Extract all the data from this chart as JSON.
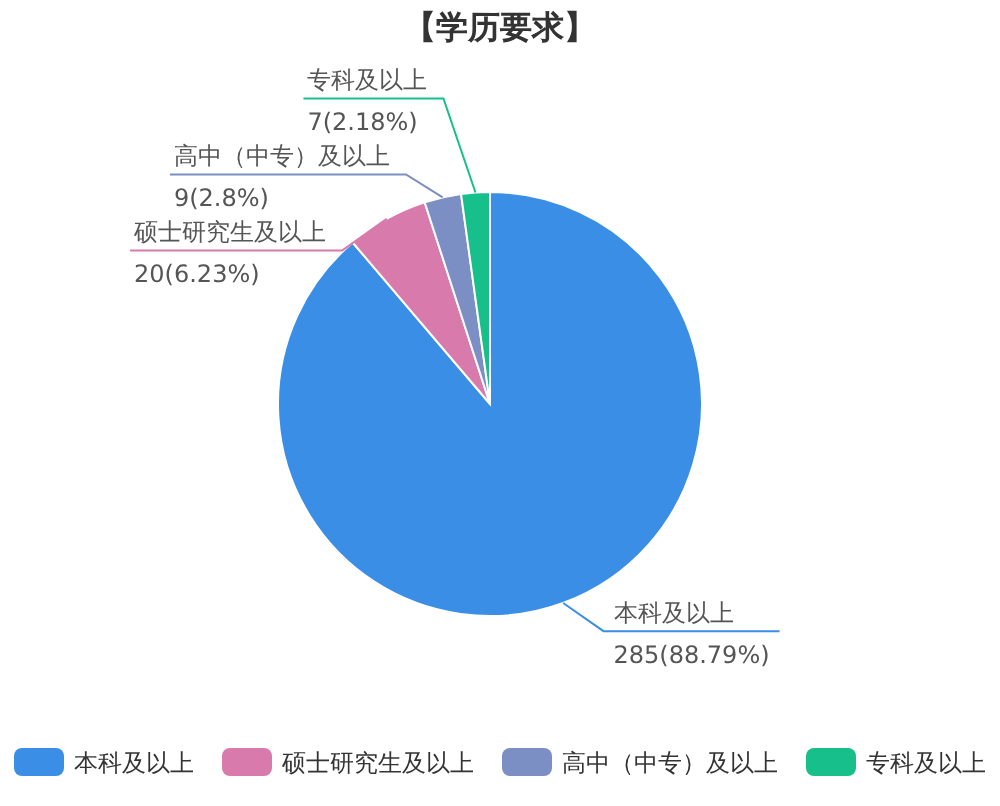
{
  "chart_data": {
    "type": "pie",
    "title": "【学历要求】",
    "categories": [
      "本科及以上",
      "硕士研究生及以上",
      "高中（中专）及以上",
      "专科及以上"
    ],
    "values": [
      285,
      20,
      9,
      7
    ],
    "value_labels": [
      "285(88.79%)",
      "20(6.23%)",
      "9(2.8%)",
      "7(2.18%)"
    ],
    "colors": [
      "#3a8ee6",
      "#d87aab",
      "#7b8fc4",
      "#17bf8a"
    ],
    "legend": "bottom"
  }
}
